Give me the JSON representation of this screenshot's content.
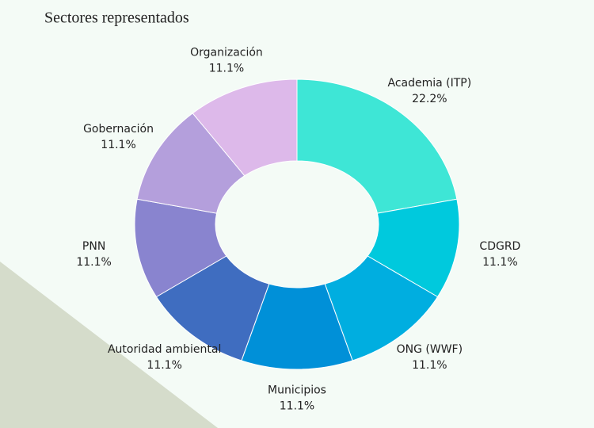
{
  "chart_data": {
    "type": "donut",
    "title": "Sectores representados",
    "categories": [
      "Academia  (ITP)",
      "CDGRD",
      "ONG (WWF)",
      "Municipios",
      "Autoridad ambiental",
      "PNN",
      "Gobernación",
      "Organización"
    ],
    "values": [
      22.2,
      11.1,
      11.1,
      11.1,
      11.1,
      11.1,
      11.1,
      11.1
    ],
    "value_labels": [
      "22.2%",
      "11.1%",
      "11.1%",
      "11.1%",
      "11.1%",
      "11.1%",
      "11.1%",
      "11.1%"
    ],
    "colors": [
      "#3ee6d6",
      "#00c9dd",
      "#00aee0",
      "#0090d8",
      "#3f6dc0",
      "#8984cf",
      "#b49fdc",
      "#ddb9ea"
    ]
  }
}
